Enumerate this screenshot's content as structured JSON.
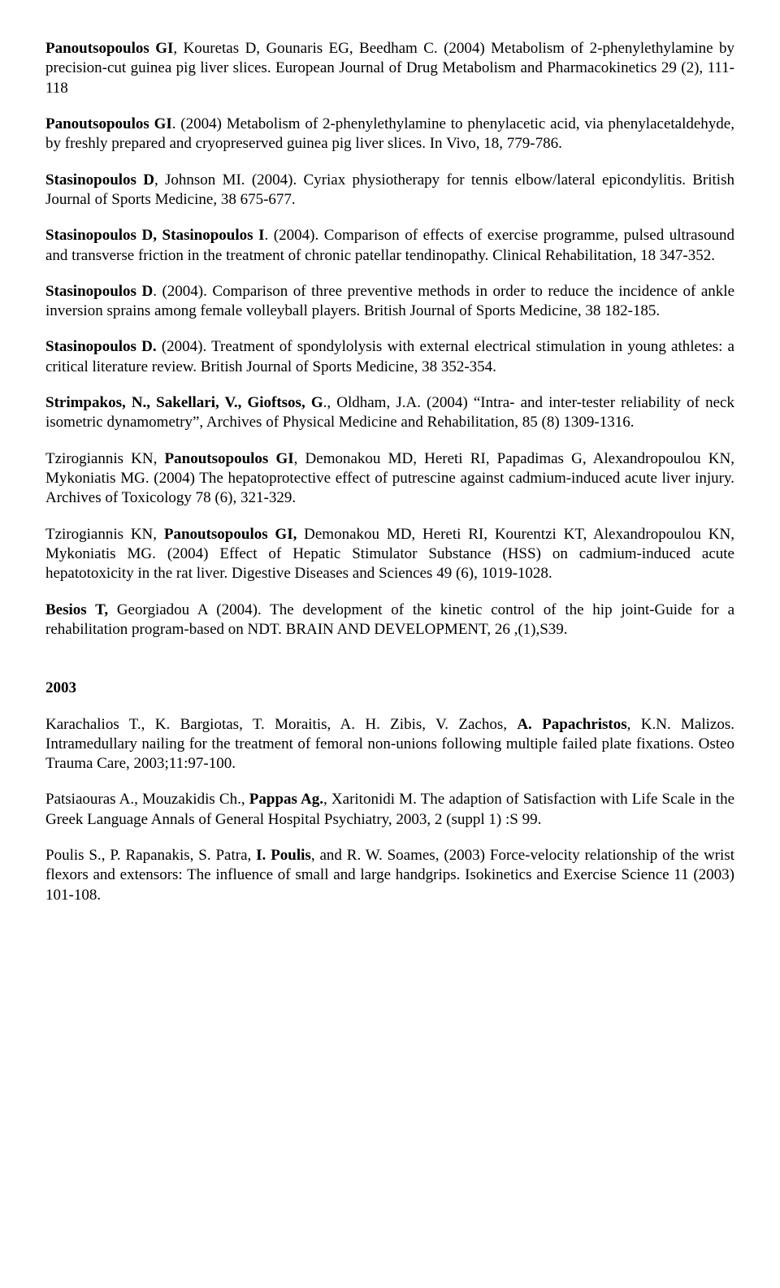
{
  "references_2004": [
    {
      "html": "<b>Panoutsopoulos GI</b>, Kouretas D, Gounaris EG, Beedham C. (2004) Metabolism of 2-phenylethylamine by precision-cut guinea pig liver slices. European Journal of Drug Metabolism and Pharmacokinetics 29 (2), 111-118"
    },
    {
      "html": "<b>Panoutsopoulos GI</b>. (2004) Metabolism of 2-phenylethylamine to phenylacetic acid, via phenylacetaldehyde, by freshly prepared and cryopreserved guinea pig liver slices. In Vivo, 18, 779-786."
    },
    {
      "html": "<b>Stasinopoulos D</b>, Johnson MI. (2004). Cyriax physiotherapy for tennis elbow/lateral epicondylitis. British Journal of Sports Medicine, 38 675-677."
    },
    {
      "html": "<b>Stasinopoulos D, Stasinopoulos I</b>. (2004). Comparison of effects of exercise programme, pulsed ultrasound and transverse friction in the treatment of chronic patellar tendinopathy. Clinical Rehabilitation, 18 347-352."
    },
    {
      "html": "<b>Stasinopoulos D</b>. (2004). Comparison of three preventive methods in order to reduce the incidence of ankle inversion sprains among female volleyball players. British Journal of Sports Medicine, 38 182-185."
    },
    {
      "html": "<b>Stasinopoulos D.</b> (2004). Treatment of spondylolysis with external electrical stimulation in young athletes: a critical literature review. British Journal of Sports Medicine, 38 352-354."
    },
    {
      "html": "<b>Strimpakos, N., Sakellari, V., Gioftsos, G</b>., Oldham, J.A. (2004) “Intra- and inter-tester reliability of neck isometric dynamometry”, Archives of Physical Medicine and Rehabilitation, 85 (8) 1309-1316."
    },
    {
      "html": "Tzirogiannis KN, <b>Panoutsopoulos GI</b>, Demonakou MD, Hereti RI, Papadimas G, Alexandropoulou KN, Mykoniatis MG. (2004) The hepatoprotective effect of putrescine against cadmium-induced acute liver injury. Archives of Toxicology 78 (6), 321-329."
    },
    {
      "html": "Tzirogiannis KN, <b>Panoutsopoulos GI,</b> Demonakou MD, Hereti RI, Kourentzi KT, Alexandropoulou KN, Mykoniatis MG. (2004) Effect of Hepatic Stimulator Substance (HSS) on cadmium-induced acute hepatotoxicity in the rat liver. Digestive Diseases and Sciences 49 (6), 1019-1028."
    },
    {
      "html": "<b>Besios T,</b> Georgiadou A (2004). The development of the kinetic control of the hip joint-Guide for a rehabilitation program-based on NDT. BRAIN AND DEVELOPMENT, 26 ,(1),S39."
    }
  ],
  "year_heading": "2003",
  "references_2003": [
    {
      "html": "Karachalios T., K. Bargiotas, T. Moraitis, A. H. Zibis, V. Zachos, <b>A. Papachristos</b>, K.N. Malizos. Intramedullary nailing for the treatment of femoral non-unions following multiple failed plate fixations. Osteo Trauma Care, 2003;11:97-100."
    },
    {
      "html": "Patsiaouras A., Mouzakidis Ch., <b>Pappas Ag.</b>, Xaritonidi M. The adaption of Satisfaction with Life Scale in the Greek Language  Annals of General Hospital Psychiatry, 2003, 2 (suppl 1) :S 99."
    },
    {
      "html": "Poulis S., P. Rapanakis, S. Patra, <b>I. Poulis</b>, and R. W. Soames, (2003) Force-velocity relationship of the wrist flexors and extensors: The influence of small and large handgrips. Isokinetics and Exercise Science 11 (2003) 101-108."
    }
  ]
}
